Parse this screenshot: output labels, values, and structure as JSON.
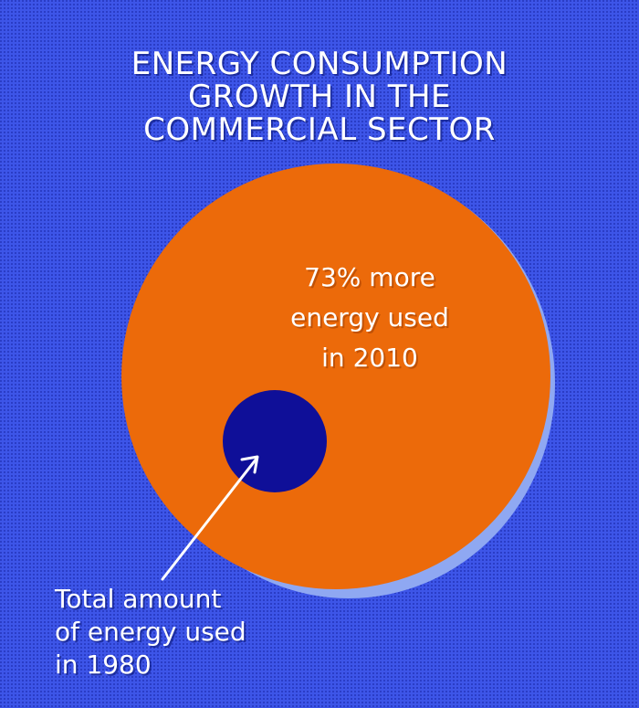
{
  "title": {
    "line1": "ENERGY CONSUMPTION",
    "line2": "GROWTH IN THE",
    "line3": "COMMERCIAL SECTOR"
  },
  "large_circle_label": {
    "line1": "73% more",
    "line2": "energy used",
    "line3": "in 2010"
  },
  "small_circle_label": {
    "line1": "Total amount",
    "line2": "of energy used",
    "line3": "in 1980"
  },
  "colors": {
    "background": "#3d55e8",
    "large_circle": "#ec6a0a",
    "large_circle_shadow": "#8fa8f2",
    "small_circle": "#0f0f98",
    "text": "#ffffff"
  }
}
